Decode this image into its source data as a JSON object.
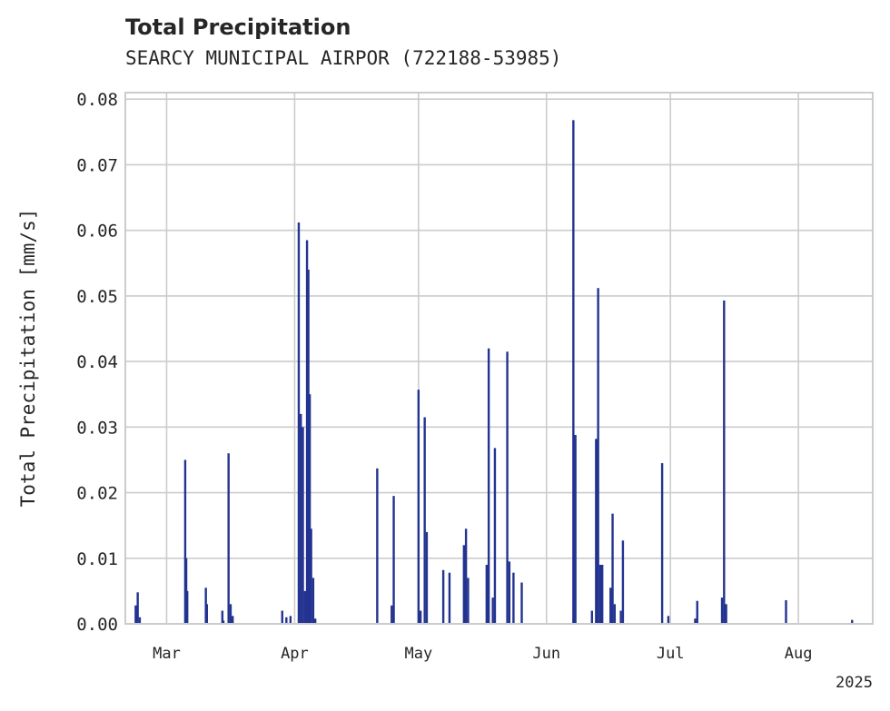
{
  "chart_data": {
    "type": "bar",
    "title": "Total Precipitation",
    "subtitle": "SEARCY MUNICIPAL AIRPOR (722188-53985)",
    "xlabel": "",
    "ylabel": "Total Precipitation [mm/s]",
    "ylim": [
      0,
      0.081
    ],
    "xlim": [
      "2025-02-19",
      "2025-08-19"
    ],
    "yticks": [
      "0.00",
      "0.01",
      "0.02",
      "0.03",
      "0.04",
      "0.05",
      "0.06",
      "0.07",
      "0.08"
    ],
    "xticks": [
      {
        "date": "2025-03-01",
        "label": "Mar"
      },
      {
        "date": "2025-04-01",
        "label": "Apr"
      },
      {
        "date": "2025-05-01",
        "label": "May"
      },
      {
        "date": "2025-06-01",
        "label": "Jun"
      },
      {
        "date": "2025-07-01",
        "label": "Jul"
      },
      {
        "date": "2025-08-01",
        "label": "Aug"
      }
    ],
    "year_label": "2025",
    "grid": true,
    "color": "#233390",
    "x": [
      "2025-02-21T12:00",
      "2025-02-22T00:00",
      "2025-02-22T12:00",
      "2025-03-05T12:00",
      "2025-03-05T18:00",
      "2025-03-06T00:00",
      "2025-03-10T12:00",
      "2025-03-10T18:00",
      "2025-03-14T12:00",
      "2025-03-14T18:00",
      "2025-03-16T00:00",
      "2025-03-16T12:00",
      "2025-03-17T00:00",
      "2025-03-29T00:00",
      "2025-03-30T00:00",
      "2025-03-31T00:00",
      "2025-04-02T00:00",
      "2025-04-02T12:00",
      "2025-04-03T00:00",
      "2025-04-03T12:00",
      "2025-04-04T00:00",
      "2025-04-04T08:00",
      "2025-04-04T16:00",
      "2025-04-05T00:00",
      "2025-04-05T12:00",
      "2025-04-06T00:00",
      "2025-04-21T00:00",
      "2025-04-24T12:00",
      "2025-04-25T00:00",
      "2025-05-01T00:00",
      "2025-05-01T12:00",
      "2025-05-02T12:00",
      "2025-05-03T00:00",
      "2025-05-07T00:00",
      "2025-05-08T12:00",
      "2025-05-12T00:00",
      "2025-05-12T12:00",
      "2025-05-13T00:00",
      "2025-05-17T12:00",
      "2025-05-18T00:00",
      "2025-05-19T00:00",
      "2025-05-19T12:00",
      "2025-05-22T12:00",
      "2025-05-23T00:00",
      "2025-05-24T00:00",
      "2025-05-26T00:00",
      "2025-06-07T12:00",
      "2025-06-08T00:00",
      "2025-06-12T00:00",
      "2025-06-13T00:00",
      "2025-06-13T12:00",
      "2025-06-14T00:00",
      "2025-06-14T12:00",
      "2025-06-16T12:00",
      "2025-06-17T00:00",
      "2025-06-17T12:00",
      "2025-06-19T00:00",
      "2025-06-19T12:00",
      "2025-06-29T00:00",
      "2025-06-30T12:00",
      "2025-07-07T00:00",
      "2025-07-07T12:00",
      "2025-07-13T12:00",
      "2025-07-14T00:00",
      "2025-07-14T12:00",
      "2025-07-29T00:00",
      "2025-08-14T00:00"
    ],
    "values": [
      0.0028,
      0.0048,
      0.001,
      0.025,
      0.01,
      0.005,
      0.0055,
      0.003,
      0.002,
      0.0005,
      0.026,
      0.003,
      0.0012,
      0.002,
      0.001,
      0.0012,
      0.0612,
      0.032,
      0.03,
      0.005,
      0.0585,
      0.054,
      0.035,
      0.0145,
      0.007,
      0.0008,
      0.0237,
      0.0028,
      0.0195,
      0.0357,
      0.002,
      0.0315,
      0.014,
      0.0082,
      0.0078,
      0.012,
      0.0145,
      0.007,
      0.009,
      0.042,
      0.004,
      0.0268,
      0.0415,
      0.0095,
      0.0078,
      0.0063,
      0.0768,
      0.0288,
      0.002,
      0.0282,
      0.0512,
      0.009,
      0.009,
      0.0055,
      0.0168,
      0.003,
      0.002,
      0.0127,
      0.0245,
      0.0012,
      0.0008,
      0.0035,
      0.004,
      0.0493,
      0.003,
      0.0036,
      0.0006
    ]
  }
}
